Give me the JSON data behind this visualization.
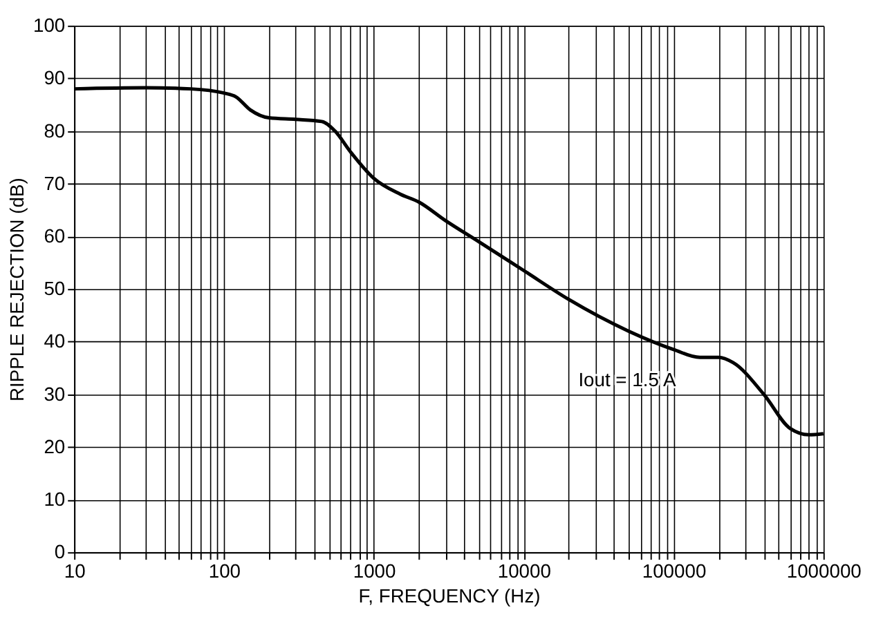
{
  "chart_data": {
    "type": "line",
    "xlabel": "F, FREQUENCY (Hz)",
    "ylabel": "RIPPLE REJECTION (dB)",
    "x": [
      10,
      30,
      60,
      100,
      120,
      150,
      200,
      300,
      450,
      550,
      700,
      1000,
      1500,
      2000,
      3000,
      5000,
      10000,
      20000,
      50000,
      100000,
      150000,
      200000,
      250000,
      400000,
      600000,
      800000,
      1000000
    ],
    "series": [
      {
        "color": "#000000",
        "values": [
          88,
          88.2,
          88,
          87.2,
          86.5,
          84,
          82.5,
          82.2,
          81.8,
          80,
          76,
          71,
          68,
          66.5,
          63,
          59,
          53.5,
          48,
          42,
          38.5,
          37,
          37,
          36,
          30,
          23.5,
          22.3,
          22.5
        ]
      }
    ],
    "log": "x",
    "xlim": [
      10,
      1000000
    ],
    "ylim": [
      0,
      100
    ],
    "xticks": [
      10,
      {
        "value": 20,
        "label": null
      },
      {
        "value": 30,
        "label": null
      },
      {
        "value": 40,
        "label": null
      },
      {
        "value": 50,
        "label": null
      },
      {
        "value": 60,
        "label": null
      },
      {
        "value": 70,
        "label": null
      },
      {
        "value": 80,
        "label": null
      },
      {
        "value": 90,
        "label": null
      },
      100,
      {
        "value": 200,
        "label": null
      },
      {
        "value": 300,
        "label": null
      },
      {
        "value": 400,
        "label": null
      },
      {
        "value": 500,
        "label": null
      },
      {
        "value": 600,
        "label": null
      },
      {
        "value": 700,
        "label": null
      },
      {
        "value": 800,
        "label": null
      },
      {
        "value": 900,
        "label": null
      },
      1000,
      {
        "value": 2000,
        "label": null
      },
      {
        "value": 3000,
        "label": null
      },
      {
        "value": 4000,
        "label": null
      },
      {
        "value": 5000,
        "label": null
      },
      {
        "value": 6000,
        "label": null
      },
      {
        "value": 7000,
        "label": null
      },
      {
        "value": 8000,
        "label": null
      },
      {
        "value": 9000,
        "label": null
      },
      10000,
      {
        "value": 20000,
        "label": null
      },
      {
        "value": 30000,
        "label": null
      },
      {
        "value": 40000,
        "label": null
      },
      {
        "value": 50000,
        "label": null
      },
      {
        "value": 60000,
        "label": null
      },
      {
        "value": 70000,
        "label": null
      },
      {
        "value": 80000,
        "label": null
      },
      {
        "value": 90000,
        "label": null
      },
      100000,
      {
        "value": 200000,
        "label": null
      },
      {
        "value": 300000,
        "label": null
      },
      {
        "value": 400000,
        "label": null
      },
      {
        "value": 500000,
        "label": null
      },
      {
        "value": 600000,
        "label": null
      },
      {
        "value": 700000,
        "label": null
      },
      {
        "value": 800000,
        "label": null
      },
      {
        "value": 900000,
        "label": null
      },
      1000000
    ],
    "yticks": [
      0,
      10,
      20,
      30,
      40,
      50,
      60,
      70,
      80,
      90,
      100
    ],
    "grid": true,
    "marker": "none",
    "line_style": "solid",
    "annotations": [
      "Iout = 1.5 A"
    ]
  }
}
